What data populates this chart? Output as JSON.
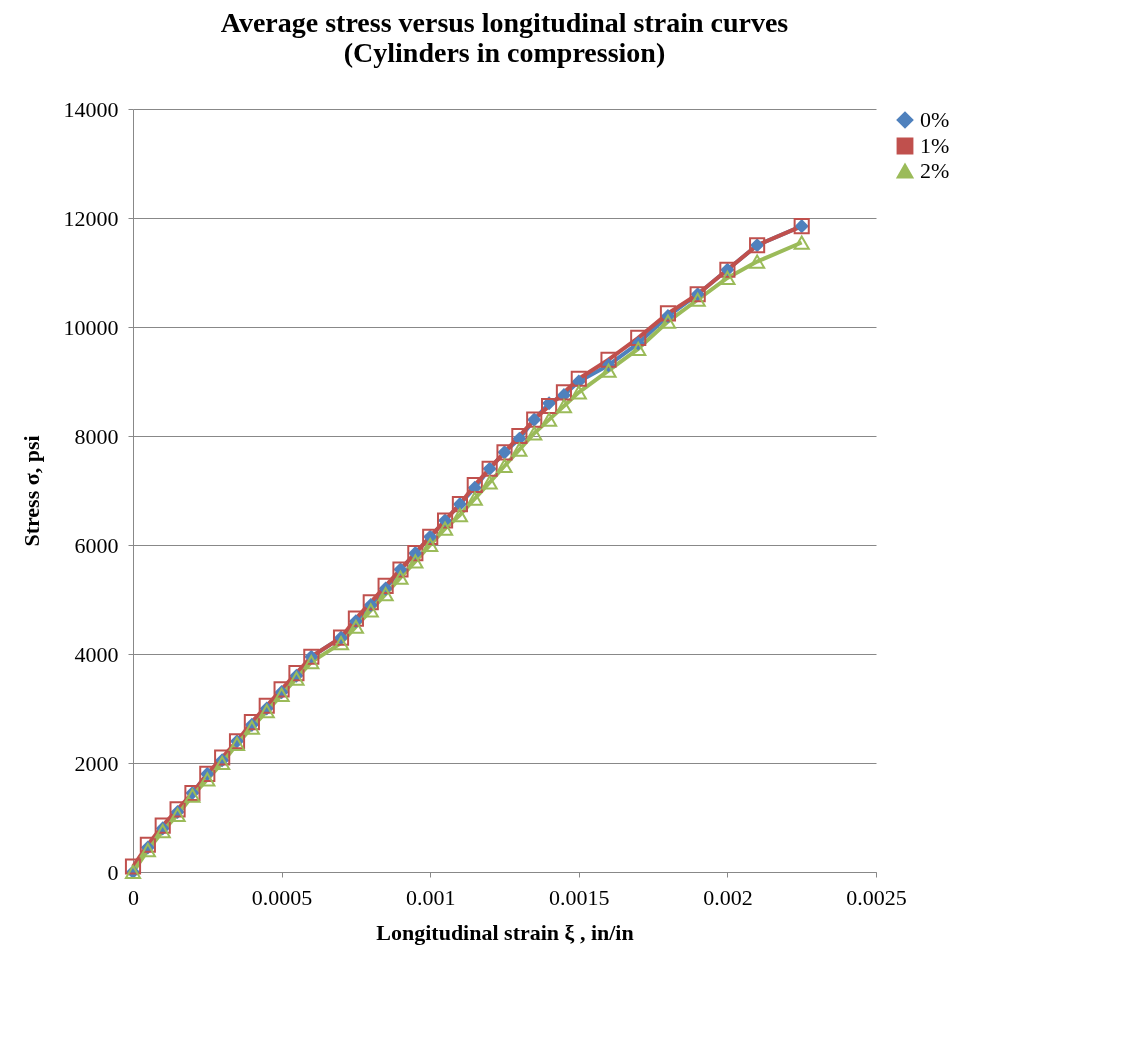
{
  "chart_data": {
    "type": "line",
    "title": [
      "Average stress versus longitudinal strain curves",
      "(Cylinders in compression)"
    ],
    "xlabel": "Longitudinal strain ξ , in/in",
    "ylabel": "Stress σ, psi",
    "x": [
      0,
      5e-05,
      0.0001,
      0.00015,
      0.0002,
      0.00025,
      0.0003,
      0.00035,
      0.0004,
      0.00045,
      0.0005,
      0.00055,
      0.0006,
      0.0007,
      0.00075,
      0.0008,
      0.00085,
      0.0009,
      0.00095,
      0.001,
      0.00105,
      0.0011,
      0.00115,
      0.0012,
      0.00125,
      0.0013,
      0.00135,
      0.0014,
      0.00145,
      0.0015,
      0.0016,
      0.0017,
      0.0018,
      0.0019,
      0.002,
      0.0021,
      0.00225
    ],
    "series": [
      {
        "name": "0%",
        "color": "#4f81bd",
        "marker": "diamond",
        "values": [
          0,
          450,
          800,
          1100,
          1450,
          1800,
          2050,
          2400,
          2700,
          3000,
          3300,
          3600,
          3950,
          4300,
          4600,
          4900,
          5200,
          5550,
          5850,
          6150,
          6450,
          6750,
          7050,
          7400,
          7700,
          7950,
          8300,
          8600,
          8750,
          9000,
          9300,
          9700,
          10200,
          10600,
          11050,
          11500,
          11850
        ]
      },
      {
        "name": "1%",
        "color": "#c0504d",
        "marker": "square",
        "values": [
          100,
          500,
          850,
          1150,
          1450,
          1800,
          2100,
          2400,
          2750,
          3050,
          3350,
          3650,
          3950,
          4300,
          4650,
          4950,
          5250,
          5550,
          5850,
          6150,
          6450,
          6750,
          7100,
          7400,
          7700,
          8000,
          8300,
          8550,
          8800,
          9050,
          9400,
          9800,
          10250,
          10600,
          11050,
          11500,
          11850
        ]
      },
      {
        "name": "2%",
        "color": "#9bbb59",
        "marker": "triangle",
        "values": [
          0,
          400,
          750,
          1050,
          1400,
          1700,
          2000,
          2350,
          2650,
          2950,
          3250,
          3550,
          3850,
          4200,
          4500,
          4800,
          5100,
          5400,
          5700,
          6000,
          6300,
          6550,
          6850,
          7150,
          7450,
          7750,
          8050,
          8300,
          8550,
          8800,
          9200,
          9600,
          10100,
          10500,
          10900,
          11200,
          11550
        ]
      }
    ],
    "xlim": [
      0,
      0.0025
    ],
    "xticks": [
      0,
      0.0005,
      0.001,
      0.0015,
      0.002,
      0.0025
    ],
    "ylim": [
      0,
      14000
    ],
    "yticks": [
      0,
      2000,
      4000,
      6000,
      8000,
      10000,
      12000,
      14000
    ],
    "grid": "y",
    "legend": "right",
    "line_style": "solid"
  }
}
